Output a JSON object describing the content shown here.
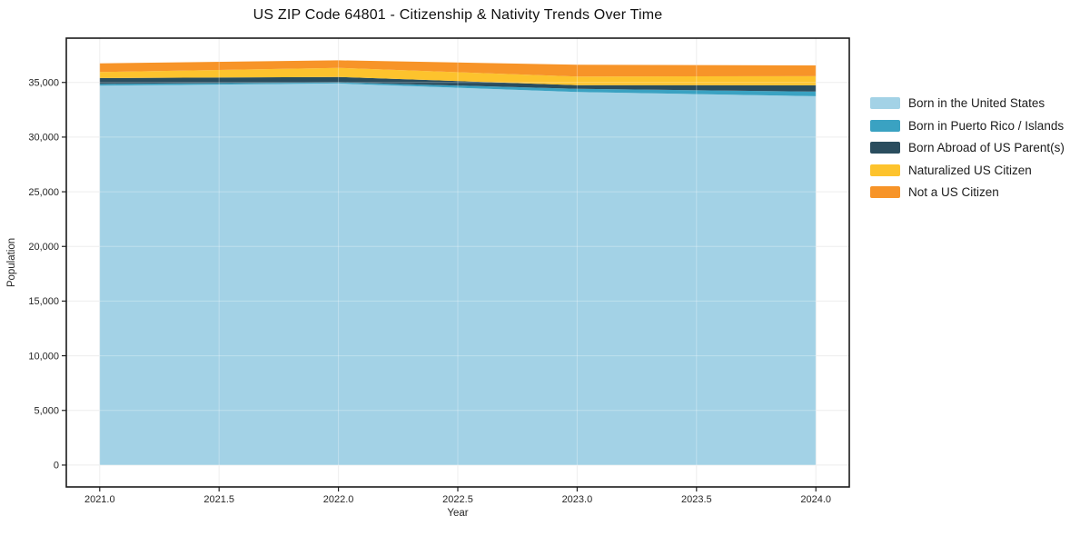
{
  "page": {
    "background_color": "#ffffff"
  },
  "chart_data": {
    "type": "area",
    "stacked": true,
    "title": "US ZIP Code 64801 - Citizenship & Nativity Trends Over Time",
    "xlabel": "Year",
    "ylabel": "Population",
    "x": [
      2021,
      2022,
      2023,
      2024
    ],
    "series": [
      {
        "name": "Born in the United States",
        "color": "#a3d2e6",
        "values": [
          34700,
          34900,
          34130,
          33740
        ]
      },
      {
        "name": "Born in Puerto Rico / Islands",
        "color": "#3aa2c2",
        "values": [
          160,
          100,
          290,
          420
        ]
      },
      {
        "name": "Born Abroad of US Parent(s)",
        "color": "#2a4d5e",
        "values": [
          540,
          500,
          330,
          580
        ]
      },
      {
        "name": "Naturalized US Citizen",
        "color": "#fdc32d",
        "values": [
          550,
          830,
          790,
          830
        ]
      },
      {
        "name": "Not a US Citizen",
        "color": "#f79428",
        "values": [
          800,
          690,
          1080,
          990
        ]
      }
    ],
    "totals": [
      36750,
      37020,
      36620,
      36560
    ],
    "xlim": [
      2020.86,
      2024.14
    ],
    "ylim": [
      -2000,
      39050
    ],
    "xticks": [
      "2021.0",
      "2021.5",
      "2022.0",
      "2022.5",
      "2023.0",
      "2023.5",
      "2024.0"
    ],
    "xtick_values": [
      2021.0,
      2021.5,
      2022.0,
      2022.5,
      2023.0,
      2023.5,
      2024.0
    ],
    "yticks": [
      "0",
      "5,000",
      "10,000",
      "15,000",
      "20,000",
      "25,000",
      "30,000",
      "35,000"
    ],
    "ytick_values": [
      0,
      5000,
      10000,
      15000,
      20000,
      25000,
      30000,
      35000
    ],
    "grid": true,
    "grid_color": "#e9e9e9",
    "frame_color": "#1a1a1a",
    "tick_label_color": "#262626",
    "legend_position": "right of plot, no frame"
  }
}
